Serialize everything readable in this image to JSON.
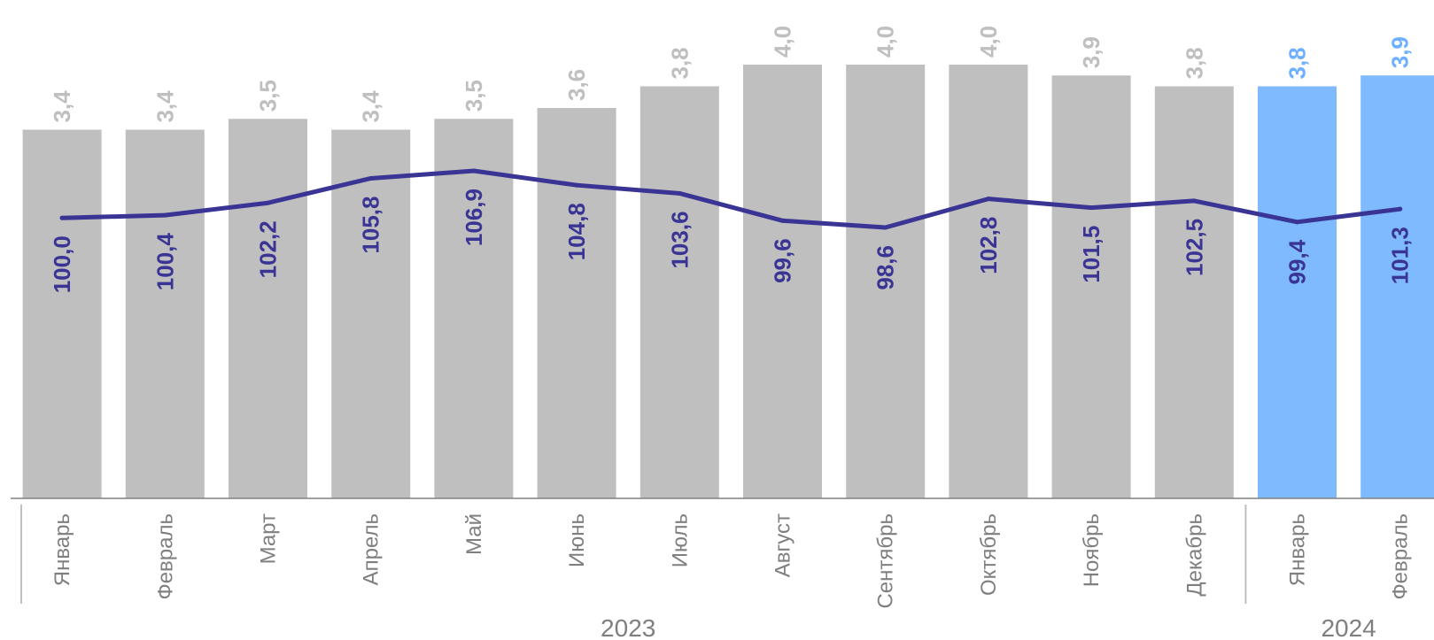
{
  "chart_data": {
    "type": "bar",
    "categories": [
      "Январь",
      "Февраль",
      "Март",
      "Апрель",
      "Май",
      "Июнь",
      "Июль",
      "Август",
      "Сентябрь",
      "Октябрь",
      "Ноябрь",
      "Декабрь",
      "Январь",
      "Февраль"
    ],
    "groups": [
      {
        "label": "2023",
        "count": 12
      },
      {
        "label": "2024",
        "count": 2
      }
    ],
    "series": [
      {
        "kind": "bar",
        "values": [
          3.4,
          3.4,
          3.5,
          3.4,
          3.5,
          3.6,
          3.8,
          4.0,
          4.0,
          4.0,
          3.9,
          3.8,
          3.8,
          3.9
        ],
        "labels": [
          "3,4",
          "3,4",
          "3,5",
          "3,4",
          "3,5",
          "3,6",
          "3,8",
          "4,0",
          "4,0",
          "4,0",
          "3,9",
          "3,8",
          "3,8",
          "3,9"
        ]
      },
      {
        "kind": "line",
        "values": [
          100.0,
          100.4,
          102.2,
          105.8,
          106.9,
          104.8,
          103.6,
          99.6,
          98.6,
          102.8,
          101.5,
          102.5,
          99.4,
          101.3
        ],
        "labels": [
          "100,0",
          "100,4",
          "102,2",
          "105,8",
          "106,9",
          "104,8",
          "103,6",
          "99,6",
          "98,6",
          "102,8",
          "101,5",
          "102,5",
          "99,4",
          "101,3"
        ]
      }
    ],
    "bar_ylim": [
      0,
      4.0
    ],
    "line_ylim": [
      94,
      114
    ],
    "grid": false,
    "legend": "none",
    "title": "",
    "xlabel": "",
    "ylabel": "",
    "colors": {
      "bar_2023": "#bfbfbf",
      "bar_2024": "#7fbaff",
      "bar_label_2023": "#bfbfbf",
      "bar_label_2024": "#6cb0ff",
      "line": "#3a3495",
      "line_label": "#3a3495",
      "axis": "#808080",
      "category_label": "#7f7f7f"
    }
  }
}
